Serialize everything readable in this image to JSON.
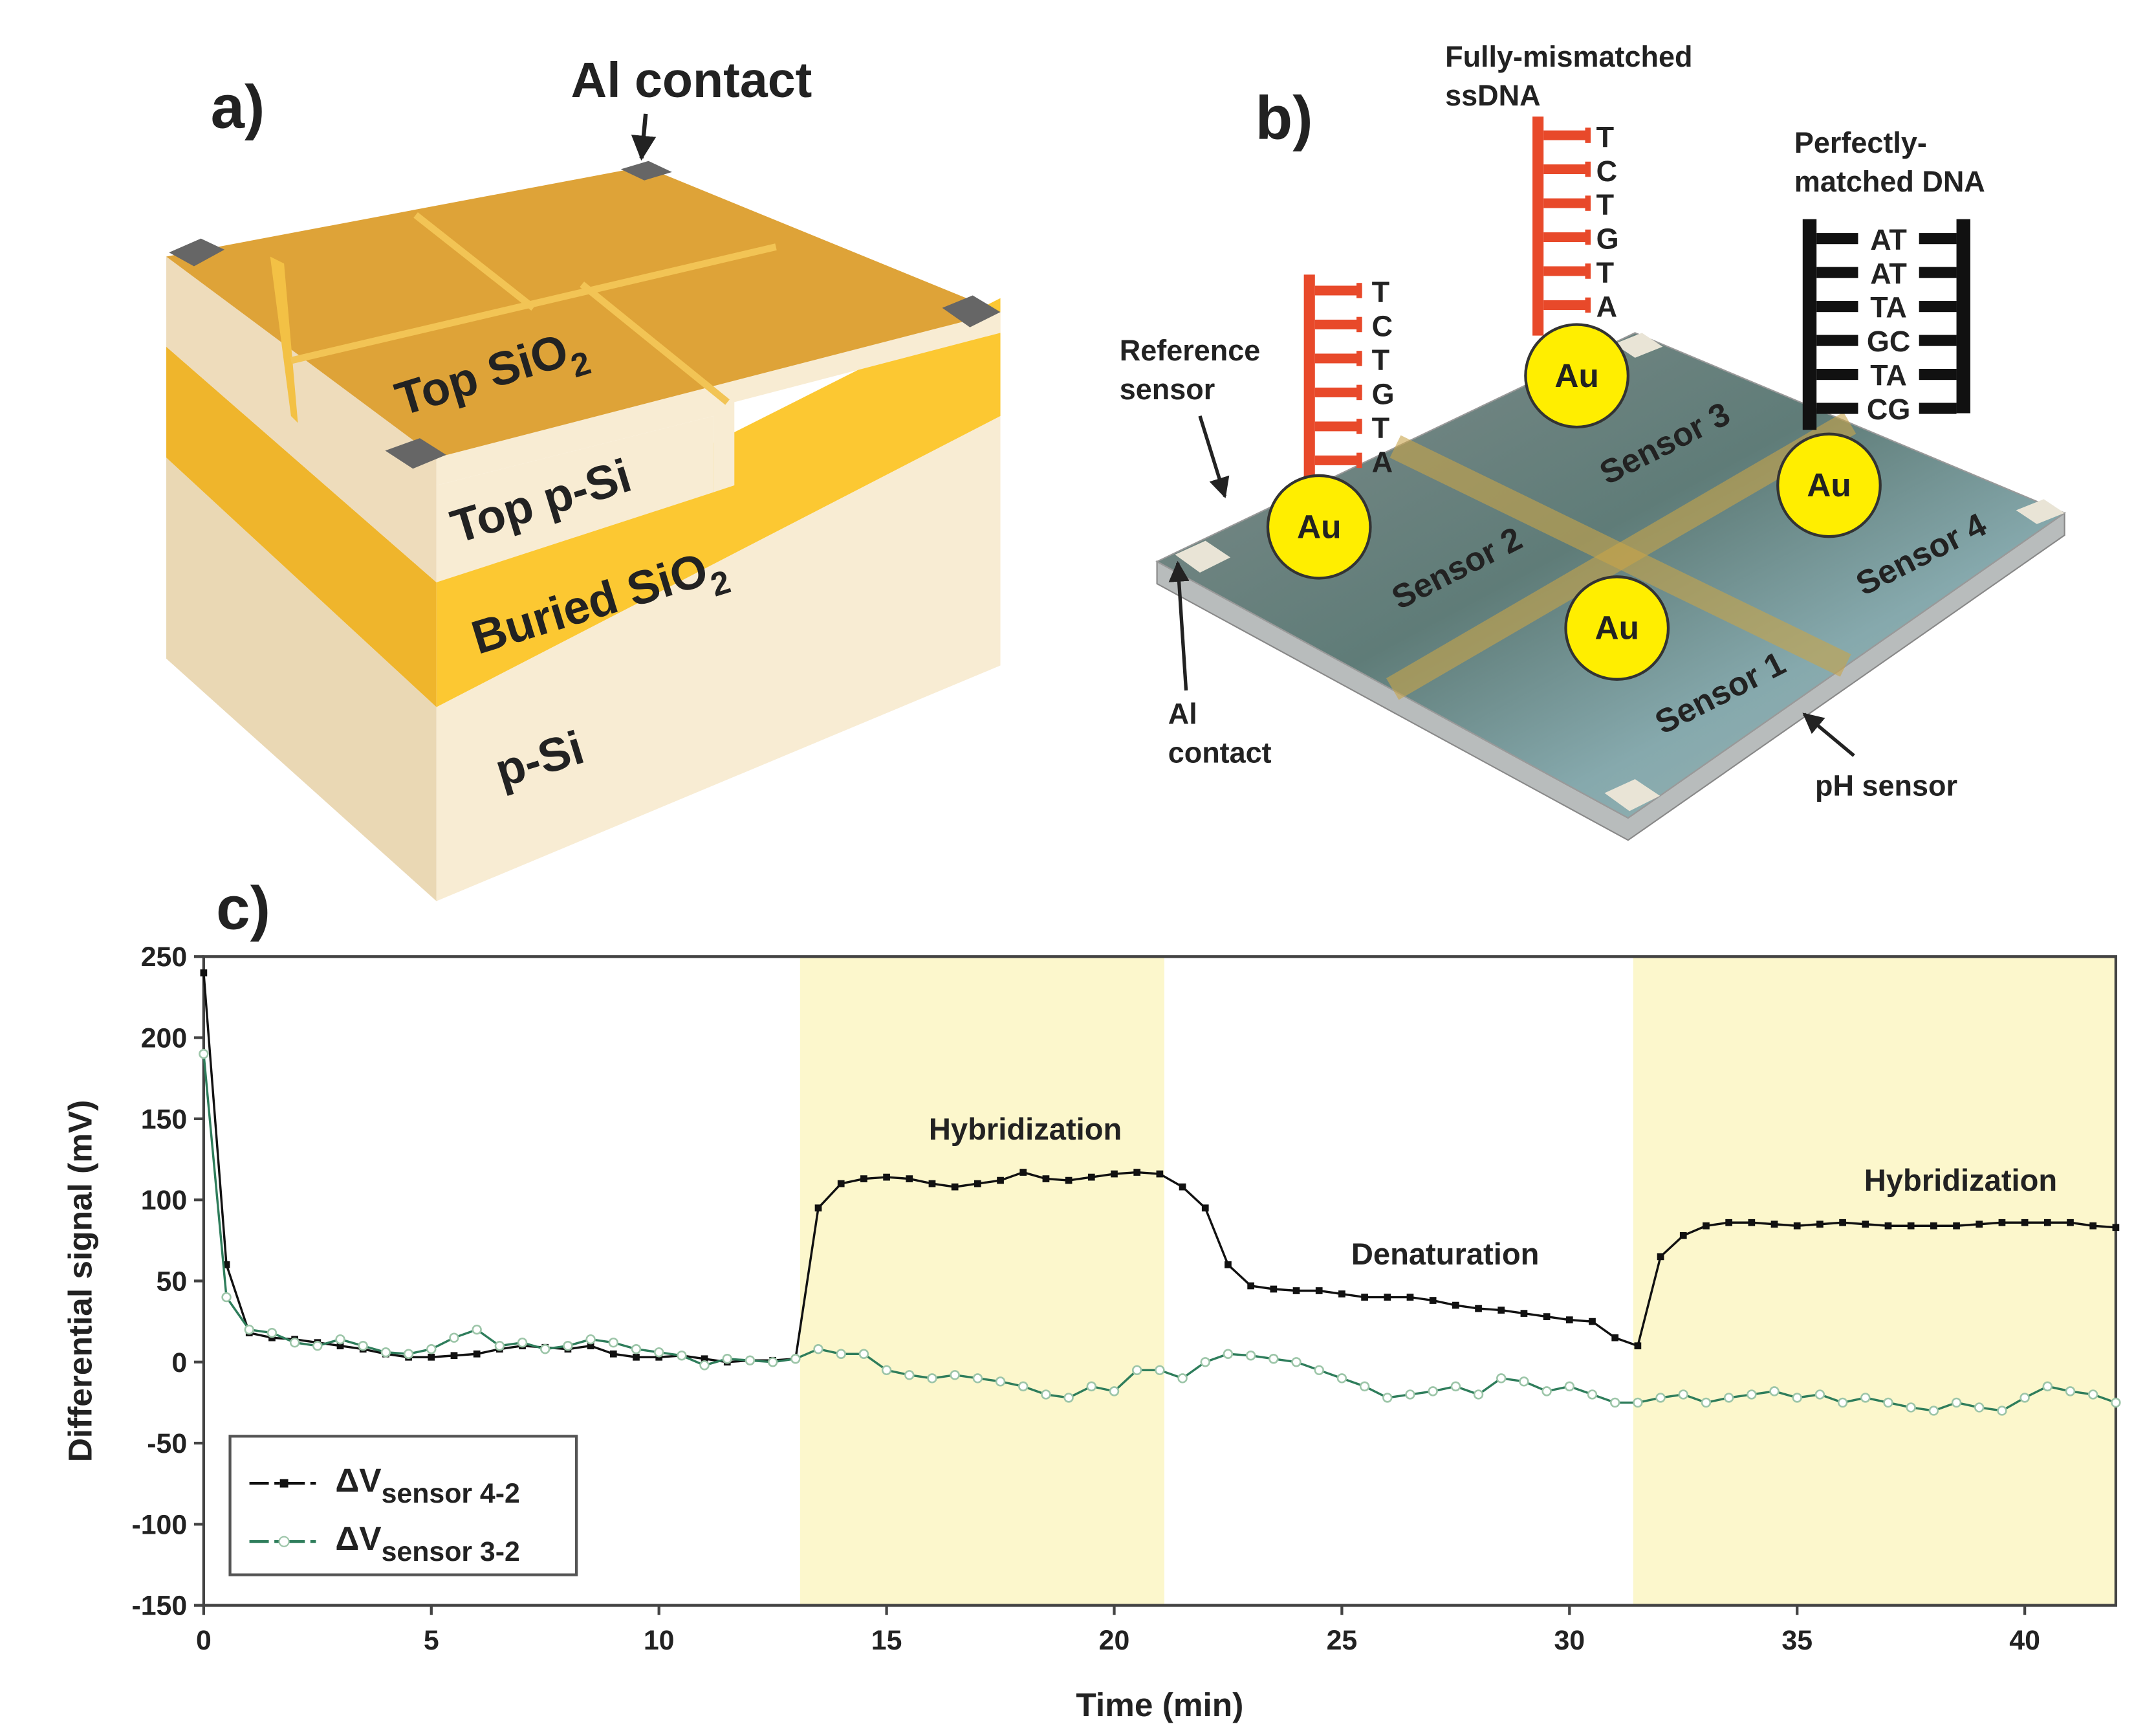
{
  "panel_a": {
    "label": "a)",
    "contact_label": "Al contact",
    "layers": [
      {
        "text": "Top SiO",
        "sub": "2"
      },
      {
        "text": "Top p-Si"
      },
      {
        "text": "Buried SiO",
        "sub": "2"
      },
      {
        "text": "p-Si"
      }
    ]
  },
  "panel_b": {
    "label": "b)",
    "mismatched": [
      "Fully-mismatched",
      "ssDNA"
    ],
    "matched": [
      "Perfectly-",
      "matched DNA"
    ],
    "reference": [
      "Reference",
      "sensor"
    ],
    "contact": [
      "Al",
      "contact"
    ],
    "ph": "pH sensor",
    "sensors": [
      "Sensor 1",
      "Sensor 2",
      "Sensor 3",
      "Sensor 4"
    ],
    "gold": [
      "Au",
      "Au",
      "Au",
      "Au"
    ],
    "ssdna_bases": [
      "T",
      "C",
      "T",
      "G",
      "T",
      "A"
    ],
    "ssdna_bases_2": [
      "T",
      "C",
      "T",
      "G",
      "T",
      "A"
    ],
    "dsdna_pairs": [
      "AT",
      "AT",
      "TA",
      "GC",
      "TA",
      "CG"
    ]
  },
  "chart_data": {
    "type": "line",
    "panel_label": "c)",
    "x_label": "Time (min)",
    "y_label": "Differential signal (mV)",
    "x": [
      0,
      0.5,
      1,
      1.5,
      2,
      2.5,
      3,
      3.5,
      4,
      4.5,
      5,
      5.5,
      6,
      6.5,
      7,
      7.5,
      8,
      8.5,
      9,
      9.5,
      10,
      10.5,
      11,
      11.5,
      12,
      12.5,
      13,
      13.5,
      14,
      14.5,
      15,
      15.5,
      16,
      16.5,
      17,
      17.5,
      18,
      18.5,
      19,
      19.5,
      20,
      20.5,
      21,
      21.5,
      22,
      22.5,
      23,
      23.5,
      24,
      24.5,
      25,
      25.5,
      26,
      26.5,
      27,
      27.5,
      28,
      28.5,
      29,
      29.5,
      30,
      30.5,
      31,
      31.5,
      32,
      32.5,
      33,
      33.5,
      34,
      34.5,
      35,
      35.5,
      36,
      36.5,
      37,
      37.5,
      38,
      38.5,
      39,
      39.5,
      40,
      40.5,
      41,
      41.5,
      42
    ],
    "xlim": [
      0,
      42
    ],
    "ylim": [
      -150,
      250
    ],
    "xticks": [
      0,
      5,
      10,
      15,
      20,
      25,
      30,
      35,
      40
    ],
    "yticks": [
      -150,
      -100,
      -50,
      0,
      50,
      100,
      150,
      200,
      250
    ],
    "annotations": [
      "Hybridization",
      "Denaturation",
      "Hybridization"
    ],
    "shaded_regions": [
      [
        13.1,
        21.1
      ],
      [
        31.4,
        42
      ]
    ],
    "shade_color": "#fcf7cc",
    "series": [
      {
        "name": "ΔV",
        "name_subscript": "sensor 4-2",
        "color": "#111111",
        "marker": "square",
        "values": [
          240,
          60,
          18,
          15,
          14,
          12,
          10,
          8,
          5,
          3,
          3,
          4,
          5,
          8,
          10,
          9,
          8,
          10,
          5,
          3,
          3,
          4,
          2,
          0,
          1,
          1,
          2,
          95,
          110,
          113,
          114,
          113,
          110,
          108,
          110,
          112,
          117,
          113,
          112,
          114,
          116,
          117,
          116,
          108,
          95,
          60,
          47,
          45,
          44,
          44,
          42,
          40,
          40,
          40,
          38,
          35,
          33,
          32,
          30,
          28,
          26,
          25,
          15,
          10,
          65,
          78,
          84,
          86,
          86,
          85,
          84,
          85,
          86,
          85,
          84,
          84,
          84,
          84,
          85,
          86,
          86,
          86,
          86,
          84,
          83
        ]
      },
      {
        "name": "ΔV",
        "name_subscript": "sensor 3-2",
        "color": "#2e7d5b",
        "marker": "circle",
        "values": [
          190,
          40,
          20,
          18,
          12,
          10,
          14,
          10,
          6,
          5,
          8,
          15,
          20,
          10,
          12,
          8,
          10,
          14,
          12,
          8,
          6,
          4,
          -2,
          2,
          1,
          0,
          2,
          8,
          5,
          5,
          -5,
          -8,
          -10,
          -8,
          -10,
          -12,
          -15,
          -20,
          -22,
          -15,
          -18,
          -5,
          -5,
          -10,
          0,
          5,
          4,
          2,
          0,
          -5,
          -10,
          -15,
          -22,
          -20,
          -18,
          -15,
          -20,
          -10,
          -12,
          -18,
          -15,
          -20,
          -25,
          -25,
          -22,
          -20,
          -25,
          -22,
          -20,
          -18,
          -22,
          -20,
          -25,
          -22,
          -25,
          -28,
          -30,
          -25,
          -28,
          -30,
          -22,
          -15,
          -18,
          -20,
          -25
        ]
      }
    ]
  }
}
